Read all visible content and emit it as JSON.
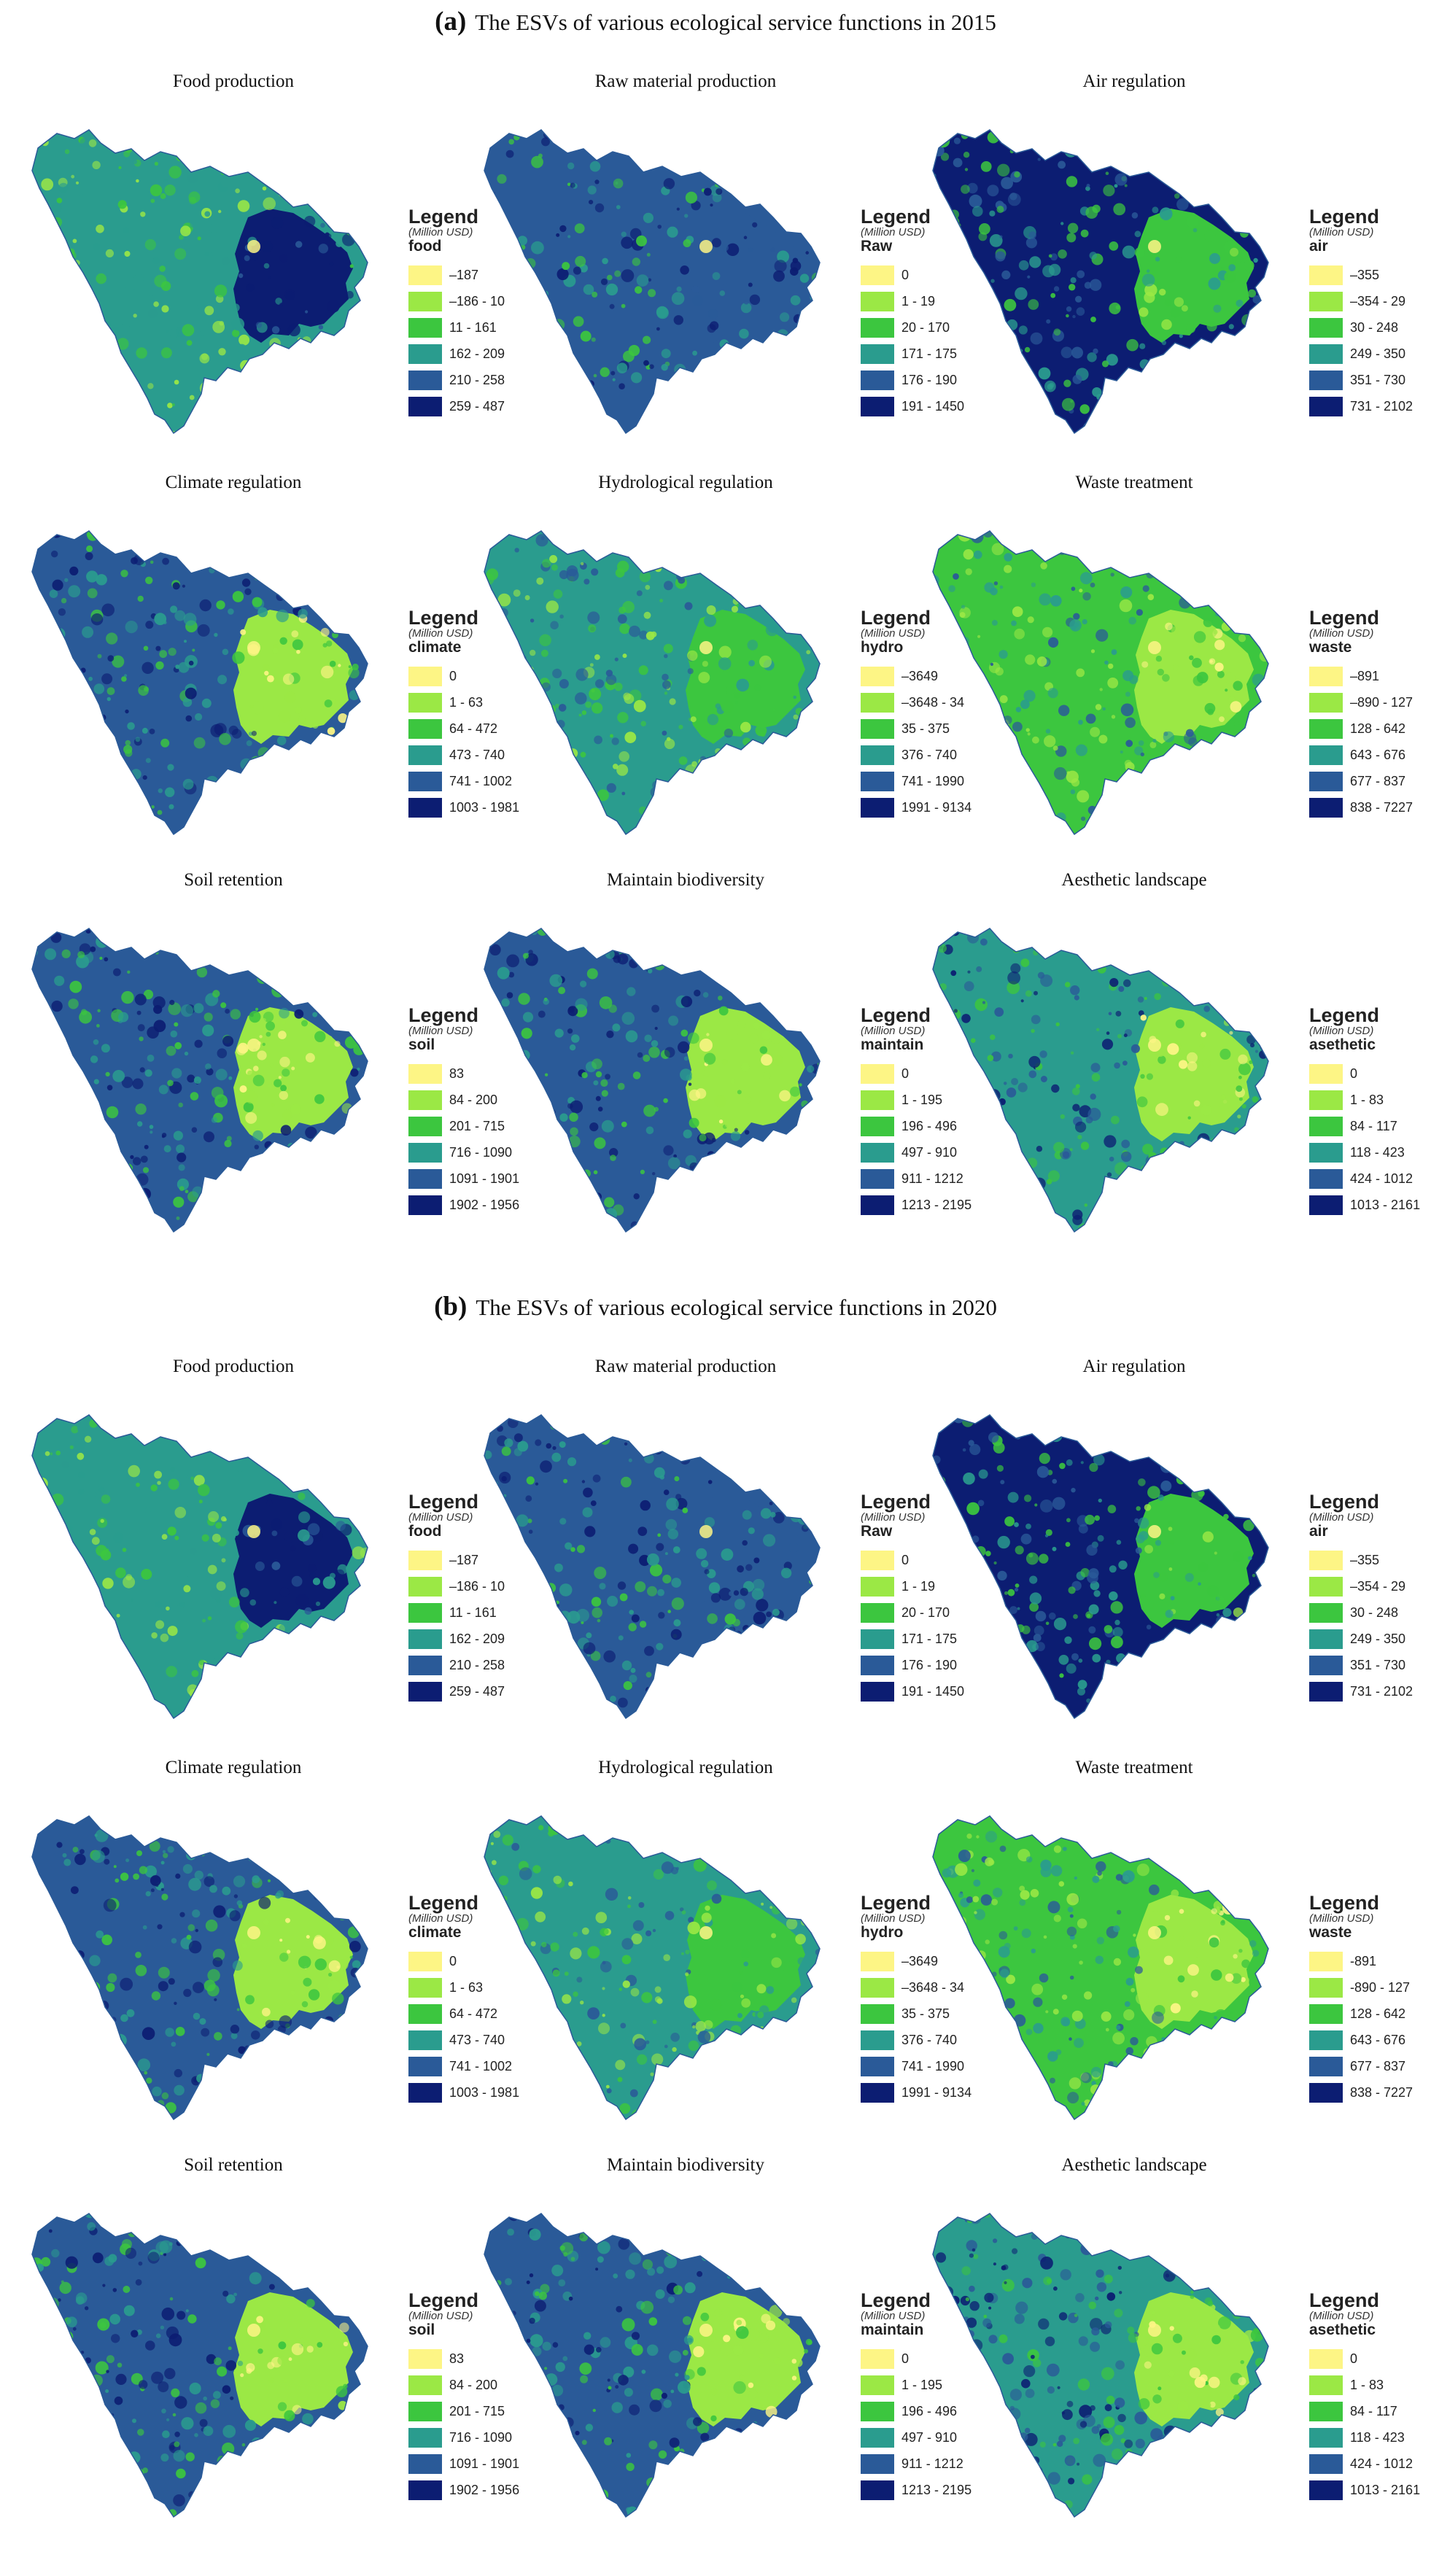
{
  "palette": [
    "#fdf585",
    "#9be845",
    "#3cc63f",
    "#2a9c8e",
    "#2a5a98",
    "#0c1d72"
  ],
  "legend_heading": "Legend",
  "legend_unit": "(Million USD)",
  "sections": [
    {
      "letter": "(a)",
      "title": "The ESVs of various ecological service functions in 2015",
      "panels": [
        {
          "title": "Food production",
          "legend_name": "food",
          "ranges": [
            "–187",
            "–186 - 10",
            "11 - 161",
            "162 - 209",
            "210 - 258",
            "259 - 487"
          ],
          "scheme": "food"
        },
        {
          "title": "Raw material production",
          "legend_name": "Raw",
          "ranges": [
            "0",
            "1 - 19",
            "20 - 170",
            "171 - 175",
            "176 - 190",
            "191 - 1450"
          ],
          "scheme": "raw"
        },
        {
          "title": "Air regulation",
          "legend_name": "air",
          "ranges": [
            "–355",
            "–354 - 29",
            "30 - 248",
            "249 - 350",
            "351 - 730",
            "731 - 2102"
          ],
          "scheme": "air"
        },
        {
          "title": "Climate regulation",
          "legend_name": "climate",
          "ranges": [
            "0",
            "1 - 63",
            "64 - 472",
            "473 - 740",
            "741 - 1002",
            "1003 - 1981"
          ],
          "scheme": "climate"
        },
        {
          "title": "Hydrological regulation",
          "legend_name": "hydro",
          "ranges": [
            "–3649",
            "–3648 - 34",
            "35 - 375",
            "376 - 740",
            "741 - 1990",
            "1991 - 9134"
          ],
          "scheme": "hydro"
        },
        {
          "title": "Waste treatment",
          "legend_name": "waste",
          "ranges": [
            "–891",
            "–890 - 127",
            "128 - 642",
            "643 - 676",
            "677 - 837",
            "838 - 7227"
          ],
          "scheme": "waste"
        },
        {
          "title": "Soil retention",
          "legend_name": "soil",
          "ranges": [
            "83",
            "84 - 200",
            "201 - 715",
            "716 - 1090",
            "1091 - 1901",
            "1902 - 1956"
          ],
          "scheme": "climate"
        },
        {
          "title": "Maintain biodiversity",
          "legend_name": "maintain",
          "ranges": [
            "0",
            "1 - 195",
            "196 - 496",
            "497 - 910",
            "911 - 1212",
            "1213 - 2195"
          ],
          "scheme": "climate"
        },
        {
          "title": "Aesthetic landscape",
          "legend_name": "asethetic",
          "ranges": [
            "0",
            "1 - 83",
            "84 - 117",
            "118 - 423",
            "424 - 1012",
            "1013 - 2161"
          ],
          "scheme": "aesthetic"
        }
      ]
    },
    {
      "letter": "(b)",
      "title": "The ESVs of various ecological service functions in 2020",
      "panels": [
        {
          "title": "Food production",
          "legend_name": "food",
          "ranges": [
            "–187",
            "–186 - 10",
            "11 - 161",
            "162 - 209",
            "210 - 258",
            "259 - 487"
          ],
          "scheme": "food"
        },
        {
          "title": "Raw material production",
          "legend_name": "Raw",
          "ranges": [
            "0",
            "1 - 19",
            "20 - 170",
            "171 - 175",
            "176 - 190",
            "191 - 1450"
          ],
          "scheme": "raw"
        },
        {
          "title": "Air regulation",
          "legend_name": "air",
          "ranges": [
            "–355",
            "–354 - 29",
            "30 - 248",
            "249 - 350",
            "351 - 730",
            "731 - 2102"
          ],
          "scheme": "air"
        },
        {
          "title": "Climate regulation",
          "legend_name": "climate",
          "ranges": [
            "0",
            "1 - 63",
            "64 - 472",
            "473 - 740",
            "741 - 1002",
            "1003 - 1981"
          ],
          "scheme": "climate"
        },
        {
          "title": "Hydrological regulation",
          "legend_name": "hydro",
          "ranges": [
            "–3649",
            "–3648 - 34",
            "35 - 375",
            "376 - 740",
            "741 - 1990",
            "1991 - 9134"
          ],
          "scheme": "hydro"
        },
        {
          "title": "Waste treatment",
          "legend_name": "waste",
          "ranges": [
            "-891",
            "-890 - 127",
            "128 - 642",
            "643 - 676",
            "677 - 837",
            "838 - 7227"
          ],
          "scheme": "waste"
        },
        {
          "title": "Soil retention",
          "legend_name": "soil",
          "ranges": [
            "83",
            "84 - 200",
            "201 - 715",
            "716 - 1090",
            "1091 - 1901",
            "1902 - 1956"
          ],
          "scheme": "climate"
        },
        {
          "title": "Maintain biodiversity",
          "legend_name": "maintain",
          "ranges": [
            "0",
            "1 - 195",
            "196 - 496",
            "497 - 910",
            "911 - 1212",
            "1213 - 2195"
          ],
          "scheme": "climate"
        },
        {
          "title": "Aesthetic landscape",
          "legend_name": "asethetic",
          "ranges": [
            "0",
            "1 - 83",
            "84 - 117",
            "118 - 423",
            "424 - 1012",
            "1013 - 2161"
          ],
          "scheme": "aesthetic"
        }
      ]
    }
  ]
}
